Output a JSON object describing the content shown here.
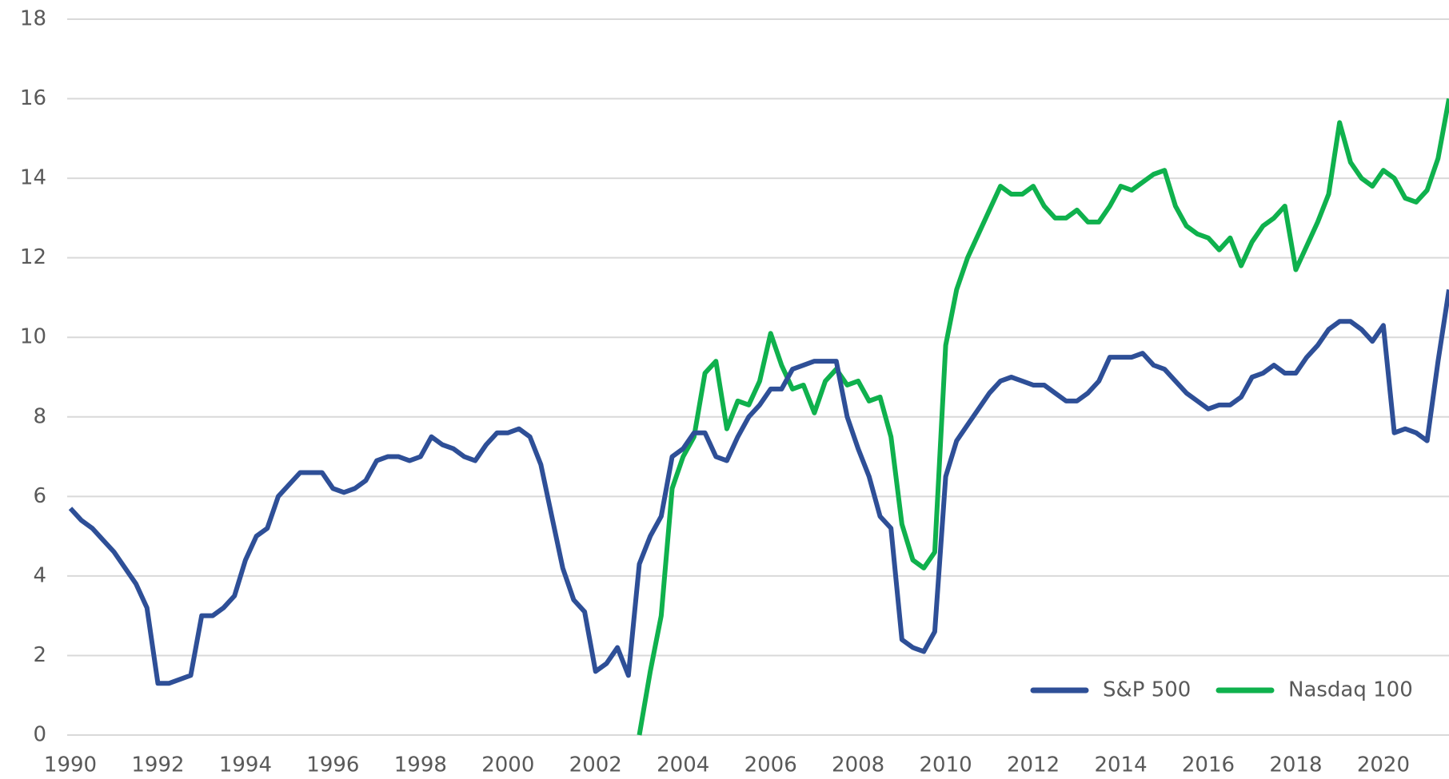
{
  "chart_data": {
    "type": "line",
    "x": [
      1990,
      1990.25,
      1990.5,
      1990.75,
      1991,
      1991.25,
      1991.5,
      1991.75,
      1992,
      1992.25,
      1992.5,
      1992.75,
      1993,
      1993.25,
      1993.5,
      1993.75,
      1994,
      1994.25,
      1994.5,
      1994.75,
      1995,
      1995.25,
      1995.5,
      1995.75,
      1996,
      1996.25,
      1996.5,
      1996.75,
      1997,
      1997.25,
      1997.5,
      1997.75,
      1998,
      1998.25,
      1998.5,
      1998.75,
      1999,
      1999.25,
      1999.5,
      1999.75,
      2000,
      2000.25,
      2000.5,
      2000.75,
      2001,
      2001.25,
      2001.5,
      2001.75,
      2002,
      2002.25,
      2002.5,
      2002.75,
      2003,
      2003.25,
      2003.5,
      2003.75,
      2004,
      2004.25,
      2004.5,
      2004.75,
      2005,
      2005.25,
      2005.5,
      2005.75,
      2006,
      2006.25,
      2006.5,
      2006.75,
      2007,
      2007.25,
      2007.5,
      2007.75,
      2008,
      2008.25,
      2008.5,
      2008.75,
      2009,
      2009.25,
      2009.5,
      2009.75,
      2010,
      2010.25,
      2010.5,
      2010.75,
      2011,
      2011.25,
      2011.5,
      2011.75,
      2012,
      2012.25,
      2012.5,
      2012.75,
      2013,
      2013.25,
      2013.5,
      2013.75,
      2014,
      2014.25,
      2014.5,
      2014.75,
      2015,
      2015.25,
      2015.5,
      2015.75,
      2016,
      2016.25,
      2016.5,
      2016.75,
      2017,
      2017.25,
      2017.5,
      2017.75,
      2018,
      2018.25,
      2018.5,
      2018.75,
      2019,
      2019.25,
      2019.5,
      2019.75,
      2020,
      2020.25,
      2020.5,
      2020.75,
      2021,
      2021.25,
      2021.5
    ],
    "series": [
      {
        "name": "S&P 500",
        "color": "#2e4f97",
        "values": [
          5.7,
          5.4,
          5.2,
          4.9,
          4.6,
          4.2,
          3.8,
          3.2,
          1.3,
          1.3,
          1.4,
          1.5,
          3.0,
          3.0,
          3.2,
          3.5,
          4.4,
          5.0,
          5.2,
          6.0,
          6.3,
          6.6,
          6.6,
          6.6,
          6.2,
          6.1,
          6.2,
          6.4,
          6.9,
          7.0,
          7.0,
          6.9,
          7.0,
          7.5,
          7.3,
          7.2,
          7.0,
          6.9,
          7.3,
          7.6,
          7.6,
          7.7,
          7.5,
          6.8,
          5.5,
          4.2,
          3.4,
          3.1,
          1.6,
          1.8,
          2.2,
          1.5,
          4.3,
          5.0,
          5.5,
          7.0,
          7.2,
          7.6,
          7.6,
          7.0,
          6.9,
          7.5,
          8.0,
          8.3,
          8.7,
          8.7,
          9.2,
          9.3,
          9.4,
          9.4,
          9.4,
          8.0,
          7.2,
          6.5,
          5.5,
          5.2,
          2.4,
          2.2,
          2.1,
          2.6,
          6.5,
          7.4,
          7.8,
          8.2,
          8.6,
          8.9,
          9.0,
          8.9,
          8.8,
          8.8,
          8.6,
          8.4,
          8.4,
          8.6,
          8.9,
          9.5,
          9.5,
          9.5,
          9.6,
          9.3,
          9.2,
          8.9,
          8.6,
          8.4,
          8.2,
          8.3,
          8.3,
          8.5,
          9.0,
          9.1,
          9.3,
          9.1,
          9.1,
          9.5,
          9.8,
          10.2,
          10.4,
          10.4,
          10.2,
          9.9,
          10.3,
          7.6,
          7.7,
          7.6,
          7.4,
          9.4,
          11.2
        ]
      },
      {
        "name": "Nasdaq 100",
        "color": "#0fb14d",
        "values": [
          null,
          null,
          null,
          null,
          null,
          null,
          null,
          null,
          null,
          null,
          null,
          null,
          null,
          null,
          null,
          null,
          null,
          null,
          null,
          null,
          null,
          null,
          null,
          null,
          null,
          null,
          null,
          null,
          null,
          null,
          null,
          null,
          null,
          null,
          null,
          null,
          null,
          null,
          null,
          null,
          null,
          null,
          null,
          null,
          null,
          null,
          null,
          null,
          null,
          null,
          null,
          null,
          0,
          1.6,
          3.0,
          6.2,
          7.0,
          7.5,
          9.1,
          9.4,
          7.7,
          8.4,
          8.3,
          8.9,
          10.1,
          9.3,
          8.7,
          8.8,
          8.1,
          8.9,
          9.2,
          8.8,
          8.9,
          8.4,
          8.5,
          7.5,
          5.3,
          4.4,
          4.2,
          4.6,
          9.8,
          11.2,
          12.0,
          12.6,
          13.2,
          13.8,
          13.6,
          13.6,
          13.8,
          13.3,
          13.0,
          13.0,
          13.2,
          12.9,
          12.9,
          13.3,
          13.8,
          13.7,
          13.9,
          14.1,
          14.2,
          13.3,
          12.8,
          12.6,
          12.5,
          12.2,
          12.5,
          11.8,
          12.4,
          12.8,
          13.0,
          13.3,
          11.7,
          12.3,
          12.9,
          13.6,
          15.4,
          14.4,
          14.0,
          13.8,
          14.2,
          14.0,
          13.5,
          13.4,
          13.7,
          14.5,
          16.0
        ]
      }
    ],
    "xlim": [
      1990,
      2021.5
    ],
    "xticks": [
      1990,
      1992,
      1994,
      1996,
      1998,
      2000,
      2002,
      2004,
      2006,
      2008,
      2010,
      2012,
      2014,
      2016,
      2018,
      2020
    ],
    "ylim": [
      0,
      18
    ],
    "yticks": [
      0,
      2,
      4,
      6,
      8,
      10,
      12,
      14,
      16,
      18
    ],
    "grid": true,
    "legend": "lower right"
  }
}
